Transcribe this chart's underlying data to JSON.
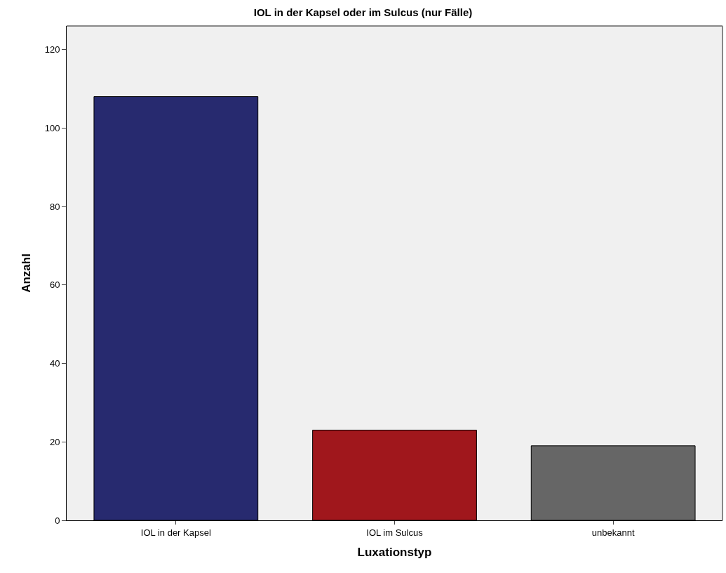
{
  "chart_data": {
    "type": "bar",
    "title": "IOL in der Kapsel oder im Sulcus (nur Fälle)",
    "xlabel": "Luxationstyp",
    "ylabel": "Anzahl",
    "categories": [
      "IOL in der Kapsel",
      "IOL im Sulcus",
      "unbekannt"
    ],
    "values": [
      108,
      23,
      19
    ],
    "colors": [
      "#272a6f",
      "#a0171c",
      "#666666"
    ],
    "ylim": [
      0,
      126
    ],
    "yticks": [
      0,
      20,
      40,
      60,
      80,
      100,
      120
    ],
    "grid": false,
    "legend": false
  }
}
